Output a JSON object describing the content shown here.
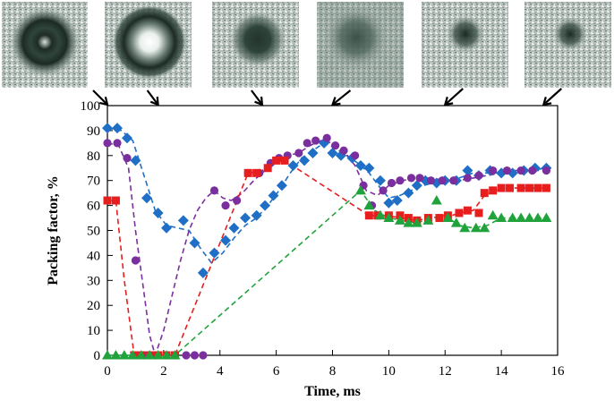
{
  "chart_data": {
    "type": "scatter",
    "title": "",
    "xlabel": "Time, ms",
    "ylabel": "Packing factor, %",
    "xlim": [
      0,
      16
    ],
    "ylim": [
      0,
      100
    ],
    "xticks": [
      "0",
      "2",
      "4",
      "6",
      "8",
      "10",
      "12",
      "14",
      "16"
    ],
    "yticks": [
      "0",
      "10",
      "20",
      "30",
      "40",
      "50",
      "60",
      "70",
      "80",
      "90",
      "100"
    ],
    "grid": false,
    "legend": "none",
    "images_at_time_ms": [
      0.0,
      1.8,
      5.5,
      8.0,
      12.0,
      15.5
    ],
    "series": [
      {
        "name": "blue diamonds",
        "color": "#1f6fc6",
        "marker": "diamond",
        "x": [
          0.0,
          0.35,
          0.7,
          1.0,
          1.4,
          1.8,
          2.1,
          2.7,
          3.1,
          3.4,
          3.8,
          4.2,
          4.5,
          4.9,
          5.3,
          5.6,
          5.9,
          6.2,
          6.6,
          7.0,
          7.3,
          7.7,
          8.0,
          8.3,
          8.7,
          9.0,
          9.3,
          9.7,
          10.0,
          10.3,
          10.7,
          11.0,
          11.3,
          11.7,
          12.0,
          12.4,
          12.8,
          13.2,
          13.6,
          14.0,
          14.4,
          14.8,
          15.2,
          15.6
        ],
        "y": [
          91,
          91,
          87,
          78,
          63,
          57,
          51,
          54,
          45,
          33,
          41,
          46,
          51,
          55,
          56,
          60,
          64,
          68,
          76,
          78,
          81,
          85,
          81,
          80,
          79,
          76,
          75,
          70,
          61,
          62,
          65,
          68,
          70,
          69,
          70,
          70,
          74,
          72,
          74,
          73,
          73,
          74,
          75,
          75
        ],
        "trend_x": [
          0.0,
          0.5,
          0.9,
          1.3,
          1.7,
          2.1,
          2.5,
          2.9,
          3.3,
          3.7,
          4.1,
          4.5,
          4.9,
          5.3,
          5.7,
          6.1,
          6.5,
          6.9,
          7.3,
          7.7,
          8.1,
          8.5,
          8.9,
          9.3,
          9.7,
          10.0,
          10.4,
          10.8,
          11.2,
          11.6,
          12.0,
          12.5,
          13.0,
          13.5,
          14.0,
          14.5,
          15.0,
          15.6
        ],
        "trend_y": [
          91,
          90,
          86,
          72,
          58,
          52,
          51,
          50,
          43,
          37,
          41,
          47,
          52,
          55,
          60,
          66,
          73,
          79,
          82,
          85,
          83,
          80,
          77,
          73,
          67,
          63,
          64,
          66,
          68,
          69,
          70,
          71,
          73,
          73,
          73,
          74,
          74,
          75
        ]
      },
      {
        "name": "purple circles",
        "color": "#7b2f9e",
        "marker": "circle",
        "x": [
          0.0,
          0.35,
          0.7,
          1.0,
          1.3,
          1.7,
          2.1,
          2.4,
          2.8,
          3.1,
          3.4,
          3.8,
          4.2,
          4.6,
          5.0,
          5.4,
          5.8,
          6.1,
          6.4,
          6.8,
          7.1,
          7.4,
          7.8,
          8.1,
          8.4,
          8.8,
          9.1,
          9.4,
          9.8,
          10.1,
          10.4,
          10.8,
          11.1,
          11.5,
          11.9,
          12.3,
          12.8,
          13.2,
          13.7,
          14.2,
          14.7,
          15.1,
          15.6
        ],
        "y": [
          85,
          85,
          79,
          38,
          0,
          0,
          0,
          0,
          0,
          0,
          0,
          66,
          60,
          62,
          73,
          73,
          77,
          79,
          80,
          81,
          85,
          86,
          87,
          84,
          82,
          80,
          68,
          60,
          66,
          69,
          70,
          71,
          71,
          70,
          70,
          70,
          71,
          72,
          74,
          74,
          74,
          74,
          74
        ],
        "trend_x": [
          0.0,
          0.4,
          0.75,
          1.0,
          1.3,
          1.5,
          1.7,
          2.0,
          2.3,
          2.6,
          2.9,
          3.2,
          3.5,
          3.8,
          4.1,
          4.4,
          4.8,
          5.2,
          5.6,
          6.0,
          6.4,
          6.8,
          7.2,
          7.6,
          8.0,
          8.4,
          8.8,
          9.2,
          9.6,
          10.0,
          10.5,
          11.0,
          11.5,
          12.0,
          12.5,
          13.0,
          13.5,
          14.0,
          14.5,
          15.0,
          15.6
        ],
        "trend_y": [
          85,
          84,
          75,
          50,
          25,
          8,
          0,
          10,
          24,
          38,
          50,
          58,
          63,
          66,
          63,
          62,
          65,
          70,
          74,
          78,
          80,
          81,
          84,
          86,
          85,
          82,
          76,
          66,
          64,
          68,
          70,
          71,
          71,
          70,
          70,
          71,
          72,
          73,
          74,
          74,
          74
        ]
      },
      {
        "name": "red squares",
        "color": "#e61e1e",
        "marker": "square",
        "x": [
          0.0,
          0.3,
          0.95,
          1.2,
          1.5,
          1.8,
          2.1,
          2.4,
          5.0,
          5.3,
          5.7,
          6.0,
          6.3,
          9.3,
          9.6,
          10.0,
          10.4,
          10.7,
          11.0,
          11.4,
          11.8,
          12.1,
          12.5,
          12.8,
          13.2,
          13.4,
          13.7,
          14.0,
          14.3,
          14.7,
          15.0,
          15.3,
          15.6
        ],
        "y": [
          62,
          62,
          0,
          0,
          0,
          0,
          0,
          0,
          73,
          73,
          75,
          78,
          78,
          56,
          56,
          56,
          56,
          55,
          54,
          55,
          55,
          56,
          57,
          58,
          57,
          65,
          66,
          67,
          67,
          67,
          67,
          67,
          67
        ],
        "trend_x": [
          0.0,
          0.3,
          0.6,
          0.95,
          2.4,
          5.0,
          5.5,
          6.0,
          6.3,
          9.3,
          9.8,
          10.5,
          11.0,
          11.5,
          12.0,
          12.5,
          13.0,
          13.4,
          13.8,
          14.2,
          15.6
        ],
        "trend_y": [
          62,
          62,
          30,
          0,
          0,
          73,
          74,
          78,
          78,
          56,
          56,
          55,
          54,
          55,
          55,
          57,
          58,
          64,
          66,
          67,
          67
        ]
      },
      {
        "name": "green triangles",
        "color": "#21a33c",
        "marker": "triangle",
        "x": [
          0.0,
          0.3,
          0.6,
          0.9,
          1.2,
          1.5,
          1.8,
          2.1,
          2.4,
          9.0,
          9.3,
          9.7,
          10.0,
          10.4,
          10.7,
          11.0,
          11.4,
          11.7,
          12.1,
          12.4,
          12.7,
          13.1,
          13.4,
          13.7,
          14.0,
          14.4,
          14.7,
          15.0,
          15.3,
          15.6
        ],
        "y": [
          0,
          0,
          0,
          0,
          0,
          0,
          0,
          0,
          0,
          66,
          60,
          56,
          55,
          54,
          53,
          53,
          54,
          62,
          55,
          53,
          51,
          51,
          51,
          56,
          55,
          55,
          55,
          55,
          55,
          55
        ],
        "trend_x": [
          0.0,
          2.4,
          9.0,
          9.5,
          10.0,
          10.5,
          11.0,
          11.5,
          12.0,
          12.5,
          13.0,
          13.5,
          14.0,
          15.6
        ],
        "trend_y": [
          0,
          0,
          66,
          58,
          55,
          54,
          53,
          55,
          56,
          52,
          51,
          52,
          55,
          55
        ]
      }
    ]
  }
}
